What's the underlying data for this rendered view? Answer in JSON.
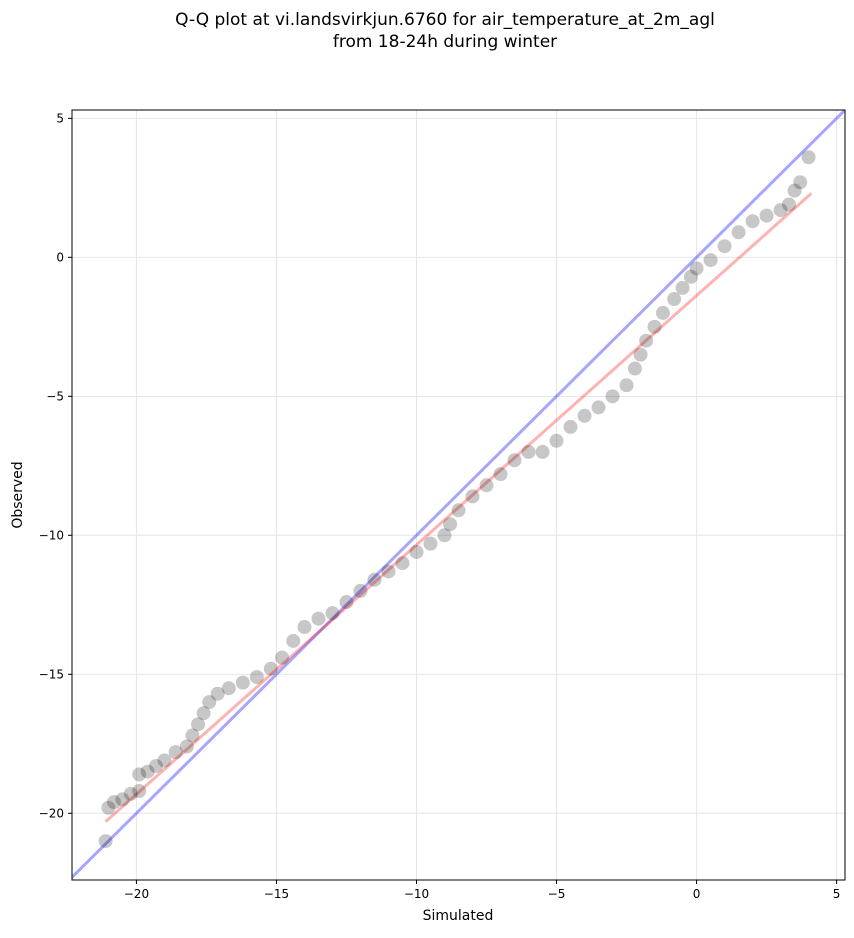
{
  "chart_data": {
    "type": "scatter",
    "title": [
      "Q-Q plot at vi.landsvirkjun.6760 for air_temperature_at_2m_agl",
      "from 18-24h during winter"
    ],
    "x_label": "Simulated",
    "y_label": "Observed",
    "xlim": [
      -22.3,
      5.3
    ],
    "ylim": [
      -22.4,
      5.3
    ],
    "xticks": [
      {
        "value": -20,
        "label": "−20"
      },
      {
        "value": -15,
        "label": "−15"
      },
      {
        "value": -10,
        "label": "−10"
      },
      {
        "value": -5,
        "label": "−5"
      },
      0,
      5
    ],
    "yticks": [
      {
        "value": -20,
        "label": "−20"
      },
      {
        "value": -15,
        "label": "−15"
      },
      {
        "value": -10,
        "label": "−10"
      },
      {
        "value": -5,
        "label": "−5"
      },
      0,
      5
    ],
    "grid": true,
    "color": "#000000",
    "identity_line": {
      "color": "#0000ff"
    },
    "fit_line": {
      "color": "#ff0000",
      "x": [
        -21.1,
        4.1
      ],
      "y": [
        -20.3,
        2.3
      ]
    },
    "x": [
      -21.1,
      -21.0,
      -20.8,
      -20.5,
      -20.2,
      -19.9,
      -19.9,
      -19.6,
      -19.3,
      -19.0,
      -18.6,
      -18.2,
      -18.0,
      -17.8,
      -17.6,
      -17.4,
      -17.1,
      -16.7,
      -16.2,
      -15.7,
      -15.2,
      -14.8,
      -14.4,
      -14.0,
      -13.5,
      -13.0,
      -12.5,
      -12.0,
      -11.5,
      -11.0,
      -10.5,
      -10.0,
      -9.5,
      -9.0,
      -8.8,
      -8.5,
      -8.0,
      -7.5,
      -7.0,
      -6.5,
      -6.0,
      -5.5,
      -5.0,
      -4.5,
      -4.0,
      -3.5,
      -3.0,
      -2.5,
      -2.2,
      -2.0,
      -1.8,
      -1.5,
      -1.2,
      -0.8,
      -0.5,
      -0.2,
      0.0,
      0.5,
      1.0,
      1.5,
      2.0,
      2.5,
      3.0,
      3.3,
      3.5,
      3.7,
      4.0
    ],
    "values": [
      -21.0,
      -19.8,
      -19.6,
      -19.5,
      -19.3,
      -19.2,
      -18.6,
      -18.5,
      -18.3,
      -18.1,
      -17.8,
      -17.6,
      -17.2,
      -16.8,
      -16.4,
      -16.0,
      -15.7,
      -15.5,
      -15.3,
      -15.1,
      -14.8,
      -14.4,
      -13.8,
      -13.3,
      -13.0,
      -12.8,
      -12.4,
      -12.0,
      -11.6,
      -11.3,
      -11.0,
      -10.6,
      -10.3,
      -10.0,
      -9.6,
      -9.1,
      -8.6,
      -8.2,
      -7.8,
      -7.3,
      -7.0,
      -7.0,
      -6.6,
      -6.1,
      -5.7,
      -5.4,
      -5.0,
      -4.6,
      -4.0,
      -3.5,
      -3.0,
      -2.5,
      -2.0,
      -1.5,
      -1.1,
      -0.7,
      -0.4,
      -0.1,
      0.4,
      0.9,
      1.3,
      1.5,
      1.7,
      1.9,
      2.4,
      2.7,
      3.6
    ]
  }
}
